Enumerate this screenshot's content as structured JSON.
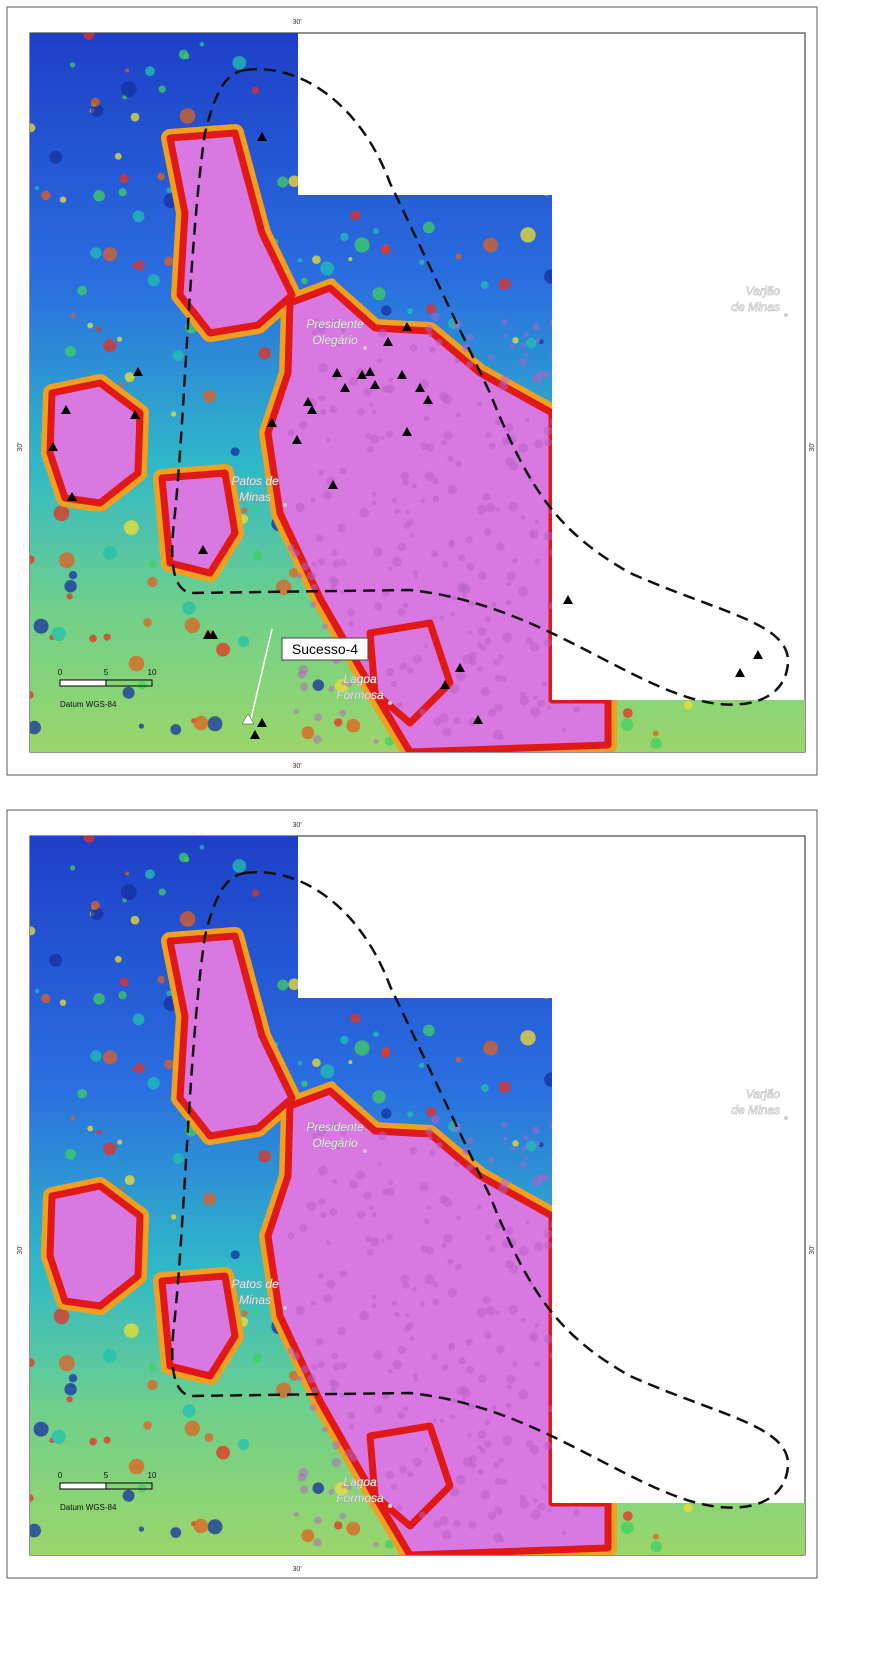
{
  "panels": [
    {
      "ticks": {
        "top": "30'",
        "bottom": "30'",
        "left": "30'",
        "right": "30'"
      },
      "places": [
        {
          "lines": [
            "Varjão",
            "de Minas"
          ]
        },
        {
          "lines": [
            "Presidente",
            "Olegário"
          ]
        },
        {
          "lines": [
            "Patos de",
            "Minas"
          ]
        },
        {
          "lines": [
            "Lagoa",
            "Formosa"
          ]
        }
      ],
      "annotation": "Sucesso-4",
      "scale": {
        "labels": [
          "0",
          "5",
          "10"
        ],
        "datum": "Datum WGS-84"
      }
    },
    {
      "ticks": {
        "top": "30'",
        "bottom": "30'",
        "left": "30'",
        "right": "30'"
      },
      "places": [
        {
          "lines": [
            "Varjão",
            "de Minas"
          ]
        },
        {
          "lines": [
            "Presidente",
            "Olegário"
          ]
        },
        {
          "lines": [
            "Patos de",
            "Minas"
          ]
        },
        {
          "lines": [
            "Lagoa",
            "Formosa"
          ]
        }
      ],
      "scale": {
        "labels": [
          "0",
          "5",
          "10"
        ],
        "datum": "Datum WGS-84"
      }
    }
  ]
}
